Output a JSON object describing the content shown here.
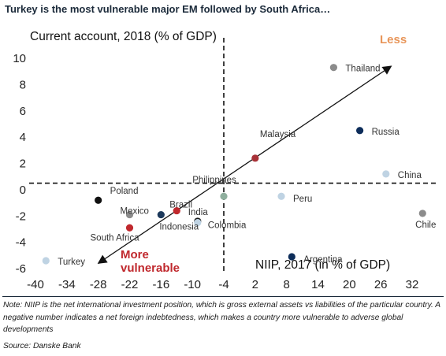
{
  "title": "Turkey is the most vulnerable major EM followed by South Africa…",
  "note": "Note: NIIP is the net international investment position, which is gross external assets vs liabilities of the particular country. A negative number indicates a net foreign indebtedness, which makes a country more vulnerable to adverse global developments",
  "source": "Source: Danske Bank",
  "chart_data": {
    "type": "scatter",
    "title": "Turkey is the most vulnerable major EM followed by South Africa…",
    "xlabel": "NIIP, 2017 (in % of GDP)",
    "ylabel": "Current account, 2018 (% of GDP)",
    "xlim": [
      -40,
      32
    ],
    "ylim": [
      -6,
      10
    ],
    "xticks": [
      -40,
      -34,
      -28,
      -22,
      -16,
      -10,
      -4,
      2,
      8,
      14,
      20,
      26,
      32
    ],
    "yticks": [
      -6,
      -4,
      -2,
      0,
      2,
      4,
      6,
      8,
      10
    ],
    "grid": false,
    "reference_lines": {
      "x": -4,
      "y": 0.5
    },
    "annotations": {
      "top_right": "Less",
      "bottom_left": "More vulnerable"
    },
    "points": [
      {
        "label": "Thailand",
        "x": 17,
        "y": 9.3,
        "color": "#8c8c8c"
      },
      {
        "label": "Russia",
        "x": 22,
        "y": 4.5,
        "color": "#0d2d5a"
      },
      {
        "label": "China",
        "x": 27,
        "y": 1.2,
        "color": "#bfd3e3"
      },
      {
        "label": "Malaysia",
        "x": 2,
        "y": 2.4,
        "color": "#a83238"
      },
      {
        "label": "Philippines",
        "x": -4,
        "y": -0.5,
        "color": "#8faf9e"
      },
      {
        "label": "Peru",
        "x": 7,
        "y": -0.5,
        "color": "#bfd3e3"
      },
      {
        "label": "Chile",
        "x": 34,
        "y": -1.8,
        "color": "#8c8c8c"
      },
      {
        "label": "Poland",
        "x": -28,
        "y": -0.8,
        "color": "#111111"
      },
      {
        "label": "Mexico",
        "x": -22,
        "y": -1.9,
        "color": "#8c8c8c"
      },
      {
        "label": "Brazil",
        "x": -13,
        "y": -1.6,
        "color": "#c0282d"
      },
      {
        "label": "Indonesia",
        "x": -16,
        "y": -1.9,
        "color": "#1d3a5c"
      },
      {
        "label": "India",
        "x": -9,
        "y": -2.4,
        "color": "#1a1a1a"
      },
      {
        "label": "Colombia",
        "x": -9,
        "y": -2.5,
        "color": "#bfd3e3"
      },
      {
        "label": "South Africa",
        "x": -22,
        "y": -2.9,
        "color": "#c0282d"
      },
      {
        "label": "Turkey",
        "x": -38,
        "y": -5.4,
        "color": "#bfd3e3"
      },
      {
        "label": "Argentina",
        "x": 9,
        "y": -5.1,
        "color": "#0d2d5a"
      }
    ]
  }
}
